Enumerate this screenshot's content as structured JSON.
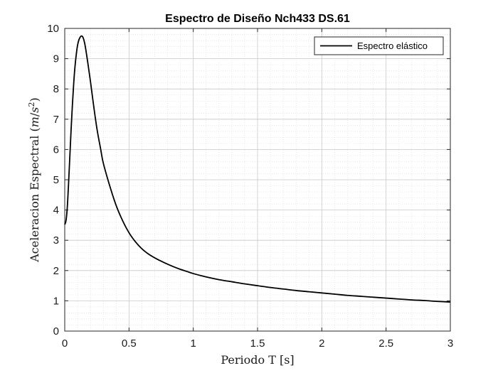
{
  "chart_data": {
    "type": "line",
    "title": "Espectro de Diseño Nch433 DS.61",
    "xlabel": "Periodo T [s]",
    "ylabel_main": "Aceleracion Espectral (",
    "ylabel_unit_m": "m",
    "ylabel_unit_sep": "/",
    "ylabel_unit_s": "s",
    "ylabel_unit_exp": "2",
    "ylabel_close": ")",
    "xlim": [
      0,
      3
    ],
    "ylim": [
      0,
      10
    ],
    "x_ticks": [
      0,
      0.5,
      1,
      1.5,
      2,
      2.5,
      3
    ],
    "x_tick_labels": [
      "0",
      "0.5",
      "1",
      "1.5",
      "2",
      "2.5",
      "3"
    ],
    "y_ticks": [
      0,
      1,
      2,
      3,
      4,
      5,
      6,
      7,
      8,
      9,
      10
    ],
    "y_tick_labels": [
      "0",
      "1",
      "2",
      "3",
      "4",
      "5",
      "6",
      "7",
      "8",
      "9",
      "10"
    ],
    "grid": "major and minor",
    "legend_position": "top-right",
    "series": [
      {
        "name": "Espectro elástico",
        "color": "#000000",
        "points": [
          [
            0,
            3.52
          ],
          [
            0.01,
            3.65
          ],
          [
            0.02,
            4.1
          ],
          [
            0.03,
            4.9
          ],
          [
            0.04,
            5.8
          ],
          [
            0.05,
            6.7
          ],
          [
            0.06,
            7.5
          ],
          [
            0.07,
            8.2
          ],
          [
            0.08,
            8.75
          ],
          [
            0.09,
            9.15
          ],
          [
            0.1,
            9.45
          ],
          [
            0.11,
            9.62
          ],
          [
            0.12,
            9.71
          ],
          [
            0.13,
            9.75
          ],
          [
            0.14,
            9.72
          ],
          [
            0.15,
            9.6
          ],
          [
            0.16,
            9.4
          ],
          [
            0.18,
            8.85
          ],
          [
            0.2,
            8.25
          ],
          [
            0.22,
            7.6
          ],
          [
            0.25,
            6.7
          ],
          [
            0.28,
            6.0
          ],
          [
            0.3,
            5.55
          ],
          [
            0.35,
            4.8
          ],
          [
            0.4,
            4.15
          ],
          [
            0.45,
            3.65
          ],
          [
            0.5,
            3.25
          ],
          [
            0.55,
            2.95
          ],
          [
            0.6,
            2.72
          ],
          [
            0.65,
            2.55
          ],
          [
            0.7,
            2.42
          ],
          [
            0.75,
            2.31
          ],
          [
            0.8,
            2.21
          ],
          [
            0.85,
            2.12
          ],
          [
            0.9,
            2.04
          ],
          [
            0.95,
            1.97
          ],
          [
            1.0,
            1.9
          ],
          [
            1.1,
            1.79
          ],
          [
            1.2,
            1.7
          ],
          [
            1.3,
            1.63
          ],
          [
            1.4,
            1.56
          ],
          [
            1.5,
            1.5
          ],
          [
            1.6,
            1.44
          ],
          [
            1.7,
            1.39
          ],
          [
            1.8,
            1.34
          ],
          [
            1.9,
            1.3
          ],
          [
            2.0,
            1.26
          ],
          [
            2.1,
            1.22
          ],
          [
            2.2,
            1.18
          ],
          [
            2.3,
            1.15
          ],
          [
            2.4,
            1.12
          ],
          [
            2.5,
            1.09
          ],
          [
            2.6,
            1.06
          ],
          [
            2.7,
            1.03
          ],
          [
            2.8,
            1.01
          ],
          [
            2.9,
            0.98
          ],
          [
            3.0,
            0.96
          ]
        ]
      }
    ]
  }
}
